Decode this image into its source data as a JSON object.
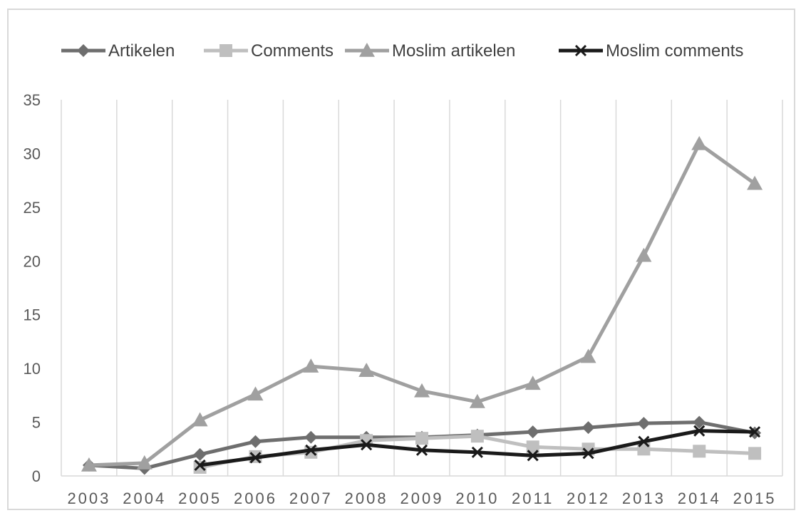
{
  "chart_data": {
    "type": "line",
    "title": "",
    "xlabel": "",
    "ylabel": "",
    "categories": [
      "2003",
      "2004",
      "2005",
      "2006",
      "2007",
      "2008",
      "2009",
      "2010",
      "2011",
      "2012",
      "2013",
      "2014",
      "2015"
    ],
    "ylim": [
      0,
      35
    ],
    "yticks": [
      0,
      5,
      10,
      15,
      20,
      25,
      30,
      35
    ],
    "grid": "vertical",
    "legend": "top",
    "series": [
      {
        "name": "Artikelen",
        "color": "#6e6e6e",
        "marker": "diamond",
        "values": [
          1.0,
          0.7,
          2.0,
          3.2,
          3.6,
          3.6,
          3.6,
          3.8,
          4.1,
          4.5,
          4.9,
          5.0,
          4.0
        ]
      },
      {
        "name": "Comments",
        "color": "#bfbfbf",
        "marker": "square",
        "values": [
          null,
          null,
          0.8,
          1.8,
          2.2,
          3.3,
          3.5,
          3.7,
          2.7,
          2.5,
          2.5,
          2.3,
          2.1
        ]
      },
      {
        "name": "Moslim artikelen",
        "color": "#a0a0a0",
        "marker": "triangle",
        "values": [
          1.0,
          1.2,
          5.2,
          7.6,
          10.2,
          9.8,
          7.9,
          6.9,
          8.6,
          11.1,
          20.5,
          30.9,
          27.2
        ]
      },
      {
        "name": "Moslim comments",
        "color": "#1a1a1a",
        "marker": "x",
        "values": [
          null,
          null,
          1.0,
          1.7,
          2.4,
          2.9,
          2.4,
          2.2,
          1.9,
          2.1,
          3.2,
          4.2,
          4.1
        ]
      }
    ]
  }
}
